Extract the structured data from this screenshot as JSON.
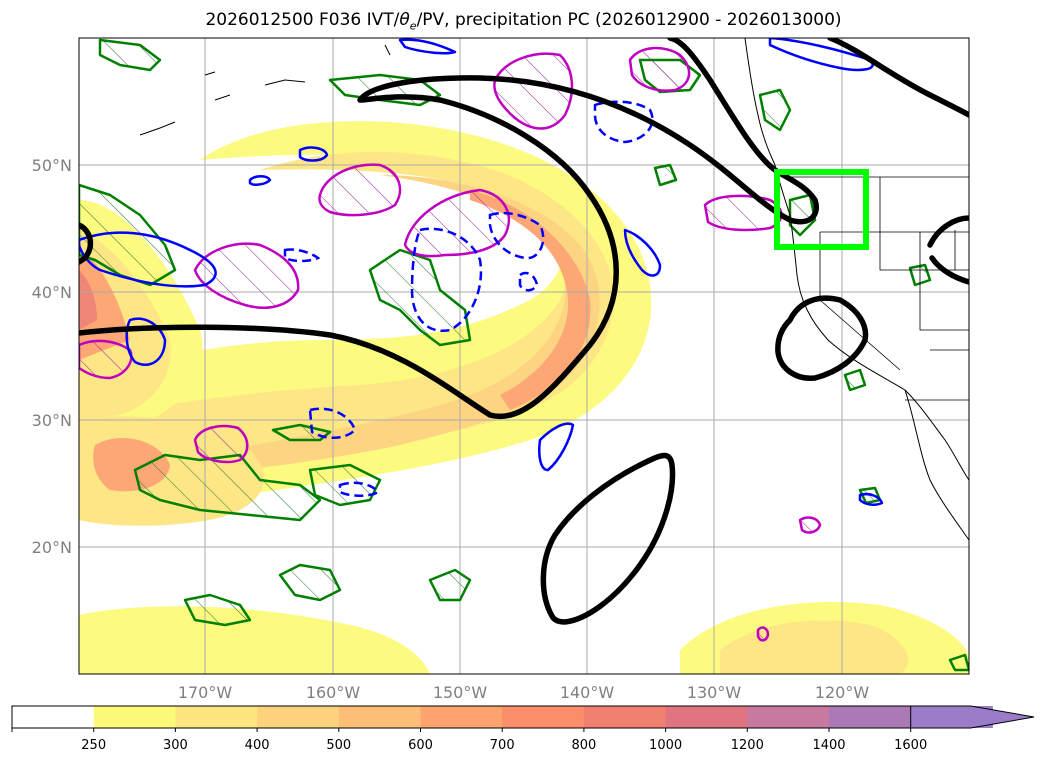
{
  "title_main": "2026012500 F036 IVT/",
  "title_theta": "θ",
  "title_sub": "e",
  "title_rest": "/PV, precipitation PC (2026012900 - 2026013000)",
  "lat_labels": [
    "50°N",
    "40°N",
    "30°N",
    "20°N"
  ],
  "lon_labels": [
    "170°W",
    "160°W",
    "150°W",
    "140°W",
    "130°W",
    "120°W"
  ],
  "colorbar": {
    "levels": [
      "250",
      "300",
      "400",
      "500",
      "600",
      "700",
      "800",
      "1000",
      "1200",
      "1400",
      "1600"
    ],
    "colors": [
      "#ffffff",
      "#fdfa7a",
      "#fde57f",
      "#fdd27c",
      "#fdbf78",
      "#fda36f",
      "#fa8d6a",
      "#f08070",
      "#e07480",
      "#c8799f",
      "#ac79b7",
      "#9b7cc9"
    ],
    "extend": "max"
  },
  "map": {
    "highlight_box_color": "#00ff00",
    "ivt_fill_colors": [
      "#fdfa7a",
      "#fde57f",
      "#fdd27c",
      "#fda36f",
      "#f08070"
    ],
    "contour_colors": {
      "theta_e": "#000000",
      "pv_positive": "#0000ff",
      "precip_green": "#008000",
      "precip_magenta": "#c000c0"
    }
  }
}
